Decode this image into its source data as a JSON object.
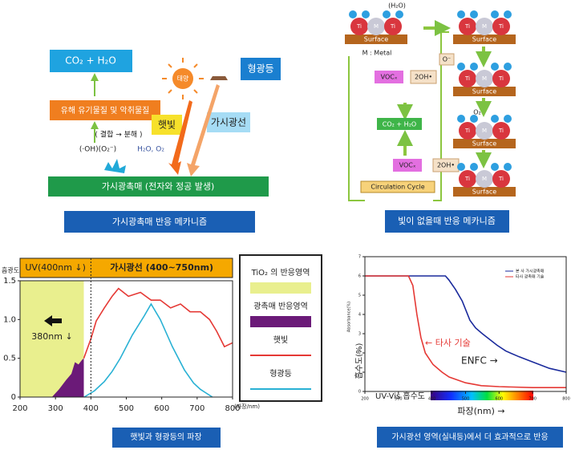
{
  "panel1": {
    "product": "CO₂ + H₂O",
    "pollutant": "유해 유기물질 및 악취물질",
    "process": "( 결합 → 분해 )",
    "radicals": "(·OH)(O₂⁻)",
    "reactants": "H₂O, O₂",
    "sun": "태양",
    "sunlight": "햇빛",
    "lamp": "형광등",
    "visible": "가시광선",
    "catalyst": "가시광촉매 (전자와 정공 발생)",
    "caption": "가시광촉매 반응 메카니즘"
  },
  "panel2": {
    "water": "(H₂O)",
    "surface": "Surface",
    "titanium": "Ti",
    "metal_symbol": "M",
    "metal": "M : Metal",
    "voc": "VOCₓ",
    "hydroxyl": "2OH•",
    "oxygen_ion": "O⁻",
    "products": "CO₂ + H₂O",
    "oxygen": "O₂",
    "cycle": "Circulation Cycle",
    "caption": "빛이 없을때 반응 메카니즘"
  },
  "chart_data": [
    {
      "type": "line",
      "y_label": "흡광도",
      "x_label": "(파장/nm)",
      "header_left": "UV(400nm ↓)",
      "header_right": "가시광선 (400~750nm)",
      "divider": 400,
      "annotation": "380nm ↓",
      "caption": "햇빛과 형광등의 파장",
      "xlim": [
        200,
        800
      ],
      "xticks": [
        200,
        300,
        400,
        500,
        600,
        700,
        800
      ],
      "ylim": [
        0,
        1.5
      ],
      "yticks": [
        0,
        0.5,
        {
          "value": 1,
          "label": "1.0"
        },
        1.5
      ],
      "series": [
        {
          "name": "TiO₂ 의 반응영역",
          "kind": "area",
          "color": "#e9ef8e",
          "x": [
            200,
            380
          ],
          "values": [
            1.5,
            1.5
          ]
        },
        {
          "name": "광촉매 반응영역",
          "kind": "area",
          "color": "#6b1a78",
          "x": [
            290,
            310,
            330,
            345,
            355,
            365,
            375,
            380
          ],
          "values": [
            0,
            0.1,
            0.22,
            0.3,
            0.45,
            0.42,
            0.48,
            0.5
          ]
        },
        {
          "name": "햇빛",
          "kind": "line",
          "color": "#e53935",
          "x": [
            380,
            400,
            415,
            438,
            460,
            478,
            506,
            540,
            570,
            596,
            625,
            653,
            680,
            709,
            735,
            755,
            777,
            800
          ],
          "values": [
            0.5,
            0.75,
            0.98,
            1.15,
            1.3,
            1.4,
            1.3,
            1.35,
            1.25,
            1.25,
            1.15,
            1.2,
            1.1,
            1.1,
            1.0,
            0.85,
            0.65,
            0.7
          ]
        },
        {
          "name": "형광등",
          "kind": "line",
          "color": "#29b1d4",
          "x": [
            381,
            410,
            438,
            460,
            483,
            517,
            551,
            570,
            596,
            630,
            664,
            690,
            709,
            743
          ],
          "values": [
            0,
            0.08,
            0.2,
            0.33,
            0.5,
            0.8,
            1.05,
            1.2,
            1.0,
            0.65,
            0.35,
            0.18,
            0.1,
            0
          ]
        }
      ]
    },
    {
      "type": "line",
      "y_label": "흡수도(%)",
      "y_label_small": "Absorbance(%)",
      "x_label": "파장(nm) →",
      "spectrum_label": "UV-Vis 흡수도",
      "caption": "가시광선 영역(실내등)에서 더 효과적으로 반응",
      "annotations": [
        "← 타사 기술",
        "ENFC →"
      ],
      "xlim": [
        200,
        800
      ],
      "xticks": [
        200,
        300,
        400,
        500,
        600,
        700,
        800
      ],
      "ylim": [
        0,
        7
      ],
      "yticks": [
        0,
        1,
        2,
        3,
        4,
        5,
        6,
        7
      ],
      "series": [
        {
          "name": "본 사 가시광촉매",
          "kind": "line",
          "color": "#1a2a9c",
          "x": [
            200,
            440,
            450,
            470,
            490,
            513,
            530,
            550,
            594,
            620,
            660,
            690,
            750,
            800
          ],
          "values": [
            6,
            6,
            5.8,
            5.3,
            4.7,
            3.7,
            3.3,
            3.0,
            2.4,
            2.1,
            1.8,
            1.6,
            1.2,
            1.0
          ]
        },
        {
          "name": "타사 광촉매 기술",
          "kind": "line",
          "color": "#e53935",
          "x": [
            200,
            330,
            343,
            355,
            367,
            380,
            403,
            430,
            451,
            500,
            547,
            600,
            700,
            800
          ],
          "values": [
            6,
            6,
            5.5,
            4.0,
            2.8,
            2.0,
            1.4,
            1.0,
            0.75,
            0.45,
            0.3,
            0.25,
            0.2,
            0.2
          ]
        }
      ]
    }
  ]
}
